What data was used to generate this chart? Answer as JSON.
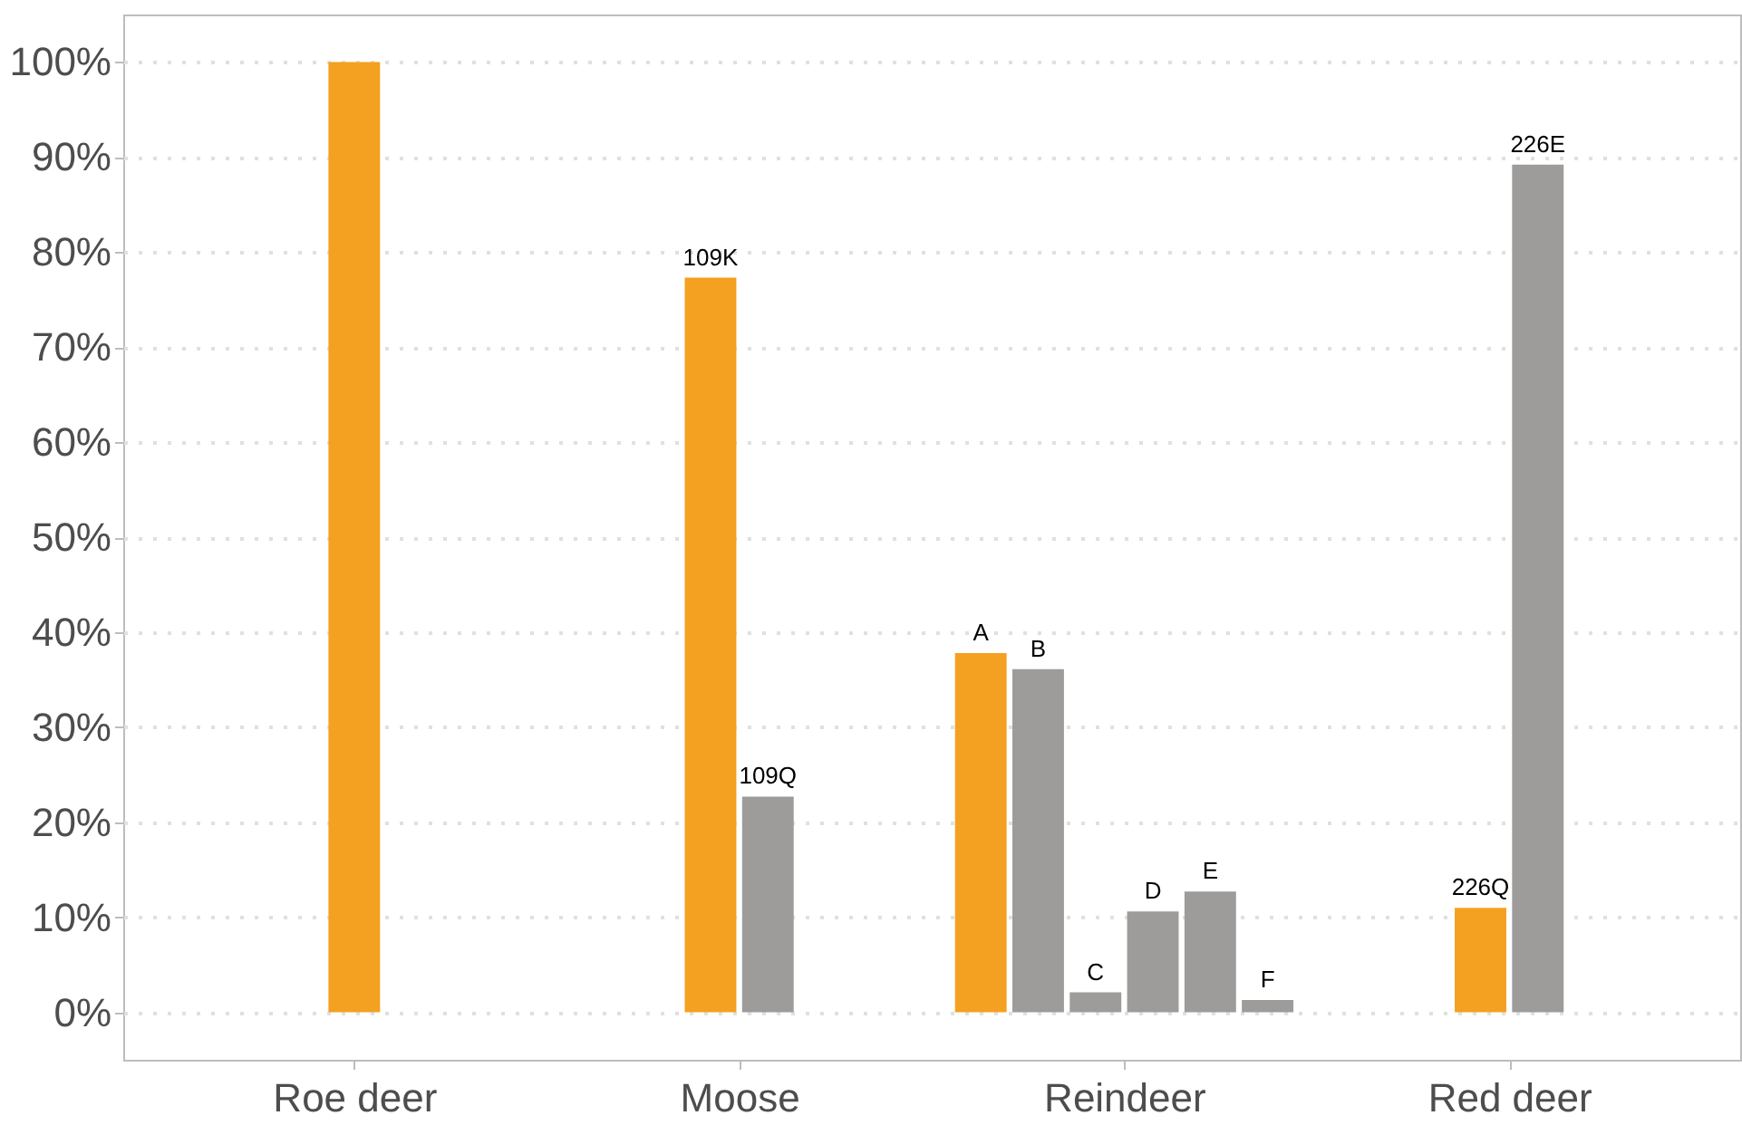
{
  "chart_data": {
    "type": "bar",
    "categories": [
      "Roe deer",
      "Moose",
      "Reindeer",
      "Red deer"
    ],
    "series": [
      {
        "color": "#f4a020",
        "values": [
          100,
          null,
          null,
          null
        ]
      },
      {
        "name": "109K",
        "color": "#f4a020",
        "values": [
          null,
          77.3,
          null,
          null
        ]
      },
      {
        "name": "109Q",
        "color": "#9d9c9a",
        "values": [
          null,
          22.7,
          null,
          null
        ]
      },
      {
        "name": "A",
        "color": "#f4a020",
        "values": [
          null,
          null,
          37.8,
          null
        ]
      },
      {
        "name": "B",
        "color": "#9d9c9a",
        "values": [
          null,
          null,
          36.1,
          null
        ]
      },
      {
        "name": "C",
        "color": "#9d9c9a",
        "values": [
          null,
          null,
          2.1,
          null
        ]
      },
      {
        "name": "D",
        "color": "#9d9c9a",
        "values": [
          null,
          null,
          10.6,
          null
        ]
      },
      {
        "name": "E",
        "color": "#9d9c9a",
        "values": [
          null,
          null,
          12.7,
          null
        ]
      },
      {
        "name": "F",
        "color": "#9d9c9a",
        "values": [
          null,
          null,
          1.3,
          null
        ]
      },
      {
        "name": "226Q",
        "color": "#f4a020",
        "values": [
          null,
          null,
          null,
          11.0
        ]
      },
      {
        "name": "226E",
        "color": "#9d9c9a",
        "values": [
          null,
          null,
          null,
          89.2
        ]
      }
    ],
    "ylim": [
      -5,
      105
    ],
    "yticks": [
      {
        "value": 0,
        "label": "0%"
      },
      {
        "value": 10,
        "label": "10%"
      },
      {
        "value": 20,
        "label": "20%"
      },
      {
        "value": 30,
        "label": "30%"
      },
      {
        "value": 40,
        "label": "40%"
      },
      {
        "value": 50,
        "label": "50%"
      },
      {
        "value": 60,
        "label": "60%"
      },
      {
        "value": 70,
        "label": "70%"
      },
      {
        "value": 80,
        "label": "80%"
      },
      {
        "value": 90,
        "label": "90%"
      },
      {
        "value": 100,
        "label": "100%"
      }
    ],
    "grid": "y"
  }
}
